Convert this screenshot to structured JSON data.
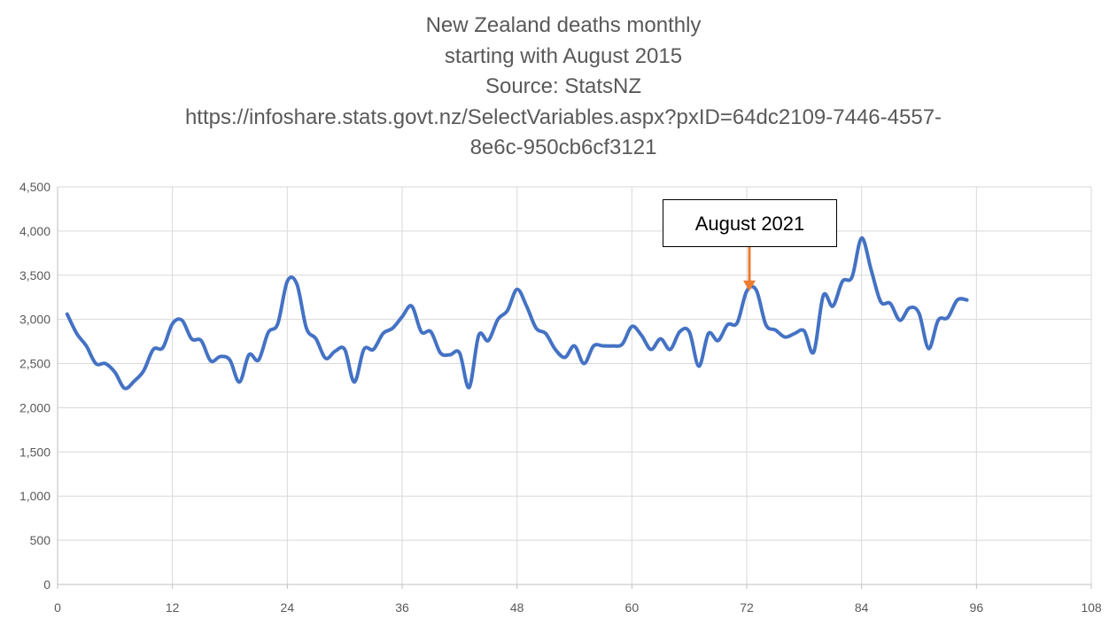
{
  "chart_data": {
    "type": "line",
    "title_lines": [
      "New Zealand deaths monthly",
      "starting with August 2015",
      "Source: StatsNZ",
      "https://infoshare.stats.govt.nz/SelectVariables.aspx?pxID=64dc2109-7446-4557-",
      "8e6c-950cb6cf3121"
    ],
    "xlabel": "",
    "ylabel": "",
    "xlim": [
      0,
      108
    ],
    "ylim": [
      0,
      4500
    ],
    "x_ticks": [
      0,
      12,
      24,
      36,
      48,
      60,
      72,
      84,
      96,
      108
    ],
    "y_ticks": [
      0,
      500,
      1000,
      1500,
      2000,
      2500,
      3000,
      3500,
      4000,
      4500
    ],
    "y_tick_labels": [
      "0",
      "500",
      "1,000",
      "1,500",
      "2,000",
      "2,500",
      "3,000",
      "3,500",
      "4,000",
      "4,500"
    ],
    "grid": "horizontal and vertical",
    "legend": "none",
    "series": [
      {
        "color": "#4472C4",
        "smooth": true,
        "x": [
          1,
          2,
          3,
          4,
          5,
          6,
          7,
          8,
          9,
          10,
          11,
          12,
          13,
          14,
          15,
          16,
          17,
          18,
          19,
          20,
          21,
          22,
          23,
          24,
          25,
          26,
          27,
          28,
          29,
          30,
          31,
          32,
          33,
          34,
          35,
          36,
          37,
          38,
          39,
          40,
          41,
          42,
          43,
          44,
          45,
          46,
          47,
          48,
          49,
          50,
          51,
          52,
          53,
          54,
          55,
          56,
          57,
          58,
          59,
          60,
          61,
          62,
          63,
          64,
          65,
          66,
          67,
          68,
          69,
          70,
          71,
          72,
          73,
          74,
          75,
          76,
          77,
          78,
          79,
          80,
          81,
          82,
          83,
          84,
          85,
          86,
          87,
          88,
          89,
          90,
          91,
          92,
          93,
          94,
          95
        ],
        "values": [
          3060,
          2840,
          2700,
          2500,
          2500,
          2400,
          2220,
          2300,
          2420,
          2660,
          2680,
          2950,
          2990,
          2780,
          2760,
          2530,
          2580,
          2540,
          2290,
          2600,
          2540,
          2850,
          2950,
          3430,
          3400,
          2900,
          2780,
          2560,
          2640,
          2660,
          2290,
          2660,
          2660,
          2840,
          2900,
          3030,
          3150,
          2860,
          2860,
          2620,
          2600,
          2620,
          2230,
          2820,
          2760,
          3000,
          3100,
          3340,
          3150,
          2900,
          2840,
          2660,
          2570,
          2700,
          2500,
          2700,
          2700,
          2700,
          2720,
          2920,
          2820,
          2660,
          2780,
          2660,
          2860,
          2860,
          2470,
          2840,
          2760,
          2940,
          2960,
          3320,
          3330,
          2940,
          2880,
          2800,
          2840,
          2870,
          2630,
          3270,
          3150,
          3430,
          3480,
          3920,
          3560,
          3200,
          3180,
          2990,
          3130,
          3070,
          2670,
          2990,
          3020,
          3220,
          3220
        ]
      }
    ],
    "annotations": [
      {
        "text": "August 2021",
        "x": 72,
        "y": 3340,
        "arrow_color": "#ED7D31"
      }
    ]
  }
}
